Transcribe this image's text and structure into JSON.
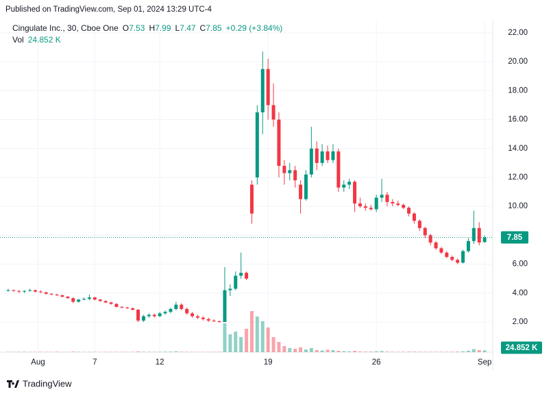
{
  "header": {
    "published": "Published on TradingView.com, Sep 01, 2024 13:29 UTC-4"
  },
  "footer": {
    "brand": "TradingView"
  },
  "chart_data": {
    "type": "candlestick",
    "symbol": "Cingulate Inc., 30, Cboe One",
    "ohlc_labels": [
      "O",
      "H",
      "L",
      "C"
    ],
    "change": "+0.29 (+3.84%)",
    "volume_title": "Vol",
    "volume_label": "24.852 K",
    "up_color": "#089981",
    "down_color": "#f23645",
    "grid": true,
    "xlim": [
      0,
      90
    ],
    "xticks": [
      {
        "value": 6,
        "label": "Aug"
      },
      {
        "value": 16.5,
        "label": "7"
      },
      {
        "value": 28.5,
        "label": "12"
      },
      {
        "value": 48.5,
        "label": "19"
      },
      {
        "value": 68.5,
        "label": "26"
      },
      {
        "value": 88.5,
        "label": "Sep"
      }
    ],
    "ylim": [
      -0.085,
      22.85
    ],
    "yticks": [
      {
        "value": 2,
        "label": "2.00"
      },
      {
        "value": 4,
        "label": "4.00"
      },
      {
        "value": 6,
        "label": "6.00"
      },
      {
        "value": 8,
        "label": "8.00"
      },
      {
        "value": 10,
        "label": "10.00"
      },
      {
        "value": 12,
        "label": "12.00"
      },
      {
        "value": 14,
        "label": "14.00"
      },
      {
        "value": 16,
        "label": "16.00"
      },
      {
        "value": 18,
        "label": "18.00"
      },
      {
        "value": 20,
        "label": "20.00"
      },
      {
        "value": 22,
        "label": "22.00"
      }
    ],
    "volume_lim": [
      0,
      1000
    ],
    "open": [
      4.2,
      4.2,
      4.15,
      4.1,
      4.15,
      4.2,
      4.1,
      4.05,
      3.95,
      3.9,
      3.85,
      3.75,
      3.65,
      3.4,
      3.55,
      3.6,
      3.7,
      3.55,
      3.45,
      3.35,
      3.25,
      3.05,
      3.0,
      2.95,
      2.85,
      2.1,
      2.4,
      2.5,
      2.4,
      2.6,
      2.7,
      2.9,
      3.2,
      2.9,
      2.6,
      2.4,
      2.3,
      2.2,
      2.1,
      2.05,
      2.0,
      4.2,
      4.3,
      5.2,
      5.4,
      11.5,
      12.0,
      16.5,
      19.5,
      17.0,
      16.0,
      12.8,
      12.3,
      12.5,
      11.5,
      10.5,
      12.2,
      14.0,
      13.0,
      13.8,
      13.2,
      13.8,
      11.3,
      11.5,
      11.7,
      10.2,
      10.0,
      9.9,
      9.8,
      10.6,
      10.8,
      10.3,
      10.2,
      10.1,
      9.9,
      9.5,
      9.0,
      8.5,
      8.0,
      7.5,
      7.1,
      6.8,
      6.5,
      6.3,
      6.1,
      6.9,
      7.6,
      8.5,
      7.53
    ],
    "high": [
      4.3,
      4.25,
      4.2,
      4.2,
      4.3,
      4.25,
      4.2,
      4.1,
      4.0,
      3.95,
      3.9,
      3.8,
      3.7,
      3.6,
      3.7,
      3.9,
      3.75,
      3.6,
      3.5,
      3.4,
      3.3,
      3.1,
      3.05,
      3.0,
      2.9,
      2.5,
      2.6,
      2.6,
      2.7,
      2.8,
      3.0,
      3.4,
      3.3,
      3.0,
      2.7,
      2.5,
      2.4,
      2.3,
      2.2,
      2.1,
      5.8,
      4.6,
      5.5,
      6.8,
      5.5,
      11.8,
      17.0,
      20.7,
      20.2,
      18.5,
      16.5,
      13.2,
      13.0,
      12.8,
      11.8,
      12.5,
      15.5,
      14.5,
      14.3,
      14.2,
      14.3,
      14.0,
      11.8,
      11.9,
      11.8,
      10.6,
      10.2,
      10.1,
      10.8,
      11.9,
      11.0,
      10.5,
      10.4,
      10.2,
      10.0,
      9.6,
      9.1,
      8.6,
      8.1,
      7.6,
      7.2,
      6.9,
      6.6,
      6.4,
      7.0,
      7.8,
      9.7,
      8.9,
      7.99
    ],
    "low": [
      4.1,
      4.1,
      4.0,
      4.0,
      4.1,
      4.05,
      4.0,
      3.9,
      3.85,
      3.8,
      3.7,
      3.6,
      3.3,
      3.35,
      3.5,
      3.5,
      3.5,
      3.4,
      3.3,
      3.2,
      3.0,
      2.95,
      2.9,
      2.8,
      2.0,
      2.0,
      2.3,
      2.3,
      2.35,
      2.5,
      2.6,
      2.8,
      2.8,
      2.5,
      2.3,
      2.2,
      2.1,
      2.0,
      2.0,
      1.95,
      2.0,
      3.8,
      4.2,
      5.0,
      4.9,
      8.8,
      11.5,
      15.0,
      16.0,
      15.5,
      12.0,
      11.5,
      11.8,
      11.3,
      9.5,
      10.4,
      12.0,
      12.5,
      12.8,
      13.0,
      13.0,
      11.0,
      11.0,
      11.2,
      9.6,
      9.9,
      9.7,
      9.7,
      9.6,
      10.3,
      10.0,
      10.0,
      10.0,
      9.8,
      9.3,
      8.8,
      8.3,
      7.8,
      7.3,
      7.0,
      6.7,
      6.4,
      6.2,
      6.0,
      6.05,
      6.8,
      7.4,
      7.3,
      7.47
    ],
    "close": [
      4.2,
      4.15,
      4.1,
      4.15,
      4.2,
      4.1,
      4.05,
      3.95,
      3.9,
      3.85,
      3.75,
      3.65,
      3.4,
      3.55,
      3.6,
      3.7,
      3.55,
      3.45,
      3.35,
      3.25,
      3.05,
      3.0,
      2.95,
      2.85,
      2.1,
      2.4,
      2.5,
      2.4,
      2.6,
      2.7,
      2.9,
      3.2,
      2.9,
      2.6,
      2.4,
      2.3,
      2.2,
      2.1,
      2.05,
      2.0,
      4.2,
      4.3,
      5.2,
      5.4,
      5.0,
      9.5,
      16.5,
      19.5,
      17.0,
      16.0,
      12.8,
      12.3,
      12.5,
      11.8,
      10.5,
      12.2,
      14.0,
      13.0,
      13.8,
      13.2,
      13.8,
      11.3,
      11.5,
      11.7,
      10.2,
      10.0,
      9.9,
      9.8,
      10.6,
      10.8,
      10.3,
      10.2,
      10.1,
      9.9,
      9.5,
      9.0,
      8.5,
      8.0,
      7.5,
      7.1,
      6.8,
      6.5,
      6.3,
      6.1,
      6.9,
      7.6,
      8.5,
      7.5,
      7.85
    ],
    "volume": [
      5,
      3,
      4,
      6,
      3,
      4,
      5,
      3,
      4,
      6,
      3,
      4,
      8,
      5,
      3,
      4,
      5,
      3,
      4,
      3,
      5,
      4,
      3,
      4,
      10,
      6,
      5,
      4,
      5,
      7,
      8,
      12,
      6,
      5,
      4,
      3,
      4,
      3,
      5,
      6,
      420,
      260,
      300,
      220,
      340,
      600,
      520,
      450,
      360,
      220,
      150,
      90,
      60,
      50,
      70,
      40,
      60,
      30,
      25,
      35,
      30,
      20,
      15,
      12,
      18,
      10,
      8,
      8,
      12,
      15,
      8,
      6,
      5,
      6,
      8,
      7,
      6,
      5,
      6,
      5,
      6,
      5,
      7,
      8,
      12,
      20,
      45,
      30,
      24.852
    ]
  }
}
